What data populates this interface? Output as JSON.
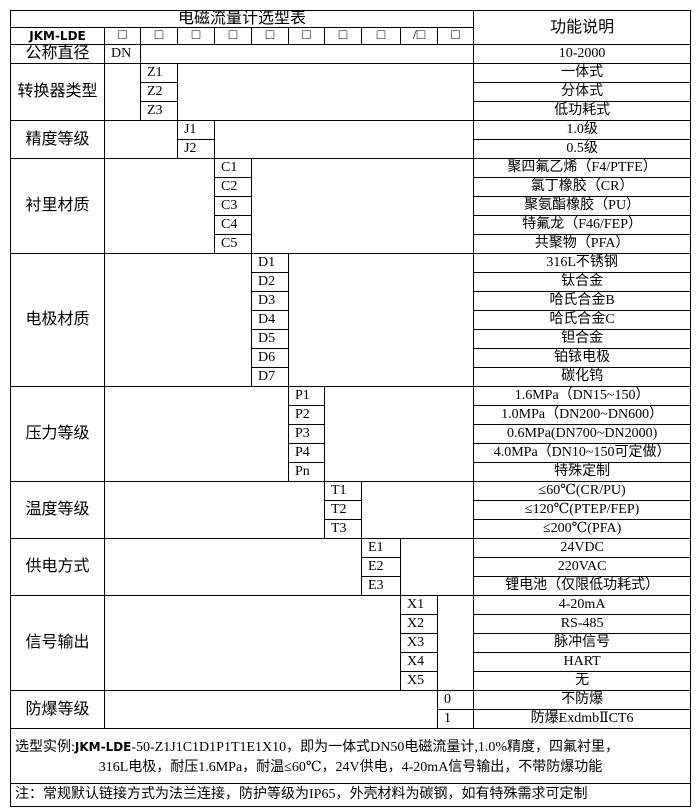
{
  "title": "电磁流量计选型表",
  "function_header": "功能说明",
  "model_prefix": "JKM-LDE",
  "code_boxes": [
    "□",
    "□",
    "□",
    "□",
    "□",
    "□",
    "□",
    "□",
    "/□",
    "□"
  ],
  "groups": [
    {
      "label": "公称直径",
      "codes": [
        "DN"
      ],
      "descriptions": [
        "10-2000"
      ]
    },
    {
      "label": "转换器类型",
      "codes": [
        "Z1",
        "Z2",
        "Z3"
      ],
      "descriptions": [
        "一体式",
        "分体式",
        "低功耗式"
      ]
    },
    {
      "label": "精度等级",
      "codes": [
        "J1",
        "J2"
      ],
      "descriptions": [
        "1.0级",
        "0.5级"
      ]
    },
    {
      "label": "衬里材质",
      "codes": [
        "C1",
        "C2",
        "C3",
        "C4",
        "C5"
      ],
      "descriptions": [
        "聚四氟乙烯（F4/PTFE）",
        "氯丁橡胶（CR）",
        "聚氨酯橡胶（PU）",
        "特氟龙（F46/FEP）",
        "共聚物（PFA）"
      ]
    },
    {
      "label": "电极材质",
      "codes": [
        "D1",
        "D2",
        "D3",
        "D4",
        "D5",
        "D6",
        "D7"
      ],
      "descriptions": [
        "316L不锈钢",
        "钛合金",
        "哈氏合金B",
        "哈氏合金C",
        "钽合金",
        "铂铱电极",
        "碳化钨"
      ]
    },
    {
      "label": "压力等级",
      "codes": [
        "P1",
        "P2",
        "P3",
        "P4",
        "Pn"
      ],
      "descriptions": [
        "1.6MPa（DN15~150）",
        "1.0MPa（DN200~DN600）",
        "0.6MPa(DN700~DN2000)",
        "4.0MPa（DN10~150可定做）",
        "特殊定制"
      ]
    },
    {
      "label": "温度等级",
      "codes": [
        "T1",
        "T2",
        "T3"
      ],
      "descriptions": [
        "≤60℃(CR/PU)",
        "≤120℃(PTEP/FEP)",
        "≤200℃(PFA)"
      ]
    },
    {
      "label": "供电方式",
      "codes": [
        "E1",
        "E2",
        "E3"
      ],
      "descriptions": [
        "24VDC",
        "220VAC",
        "锂电池（仅限低功耗式）"
      ]
    },
    {
      "label": "信号输出",
      "codes": [
        "X1",
        "X2",
        "X3",
        "X4",
        "X5"
      ],
      "descriptions": [
        "4-20mA",
        "RS-485",
        "脉冲信号",
        "HART",
        "无"
      ]
    },
    {
      "label": "防爆等级",
      "codes": [
        "0",
        "1"
      ],
      "descriptions": [
        "不防爆",
        "防爆ExdmbⅡCT6"
      ]
    }
  ],
  "example": {
    "label": "选型实例:",
    "model": "JKM-LDE",
    "line1_rest": "-50-Z1J1C1D1P1T1E1X10，即为一体式DN50电磁流量计,1.0%精度，四氟衬里，",
    "line2": "316L电极，耐压1.6MPa，耐温≤60℃，24V供电，4-20mA信号输出，不带防爆功能"
  },
  "note": "注：常规默认链接方式为法兰连接，防护等级为IP65，外壳材料为碳钢，如有特殊需求可定制"
}
